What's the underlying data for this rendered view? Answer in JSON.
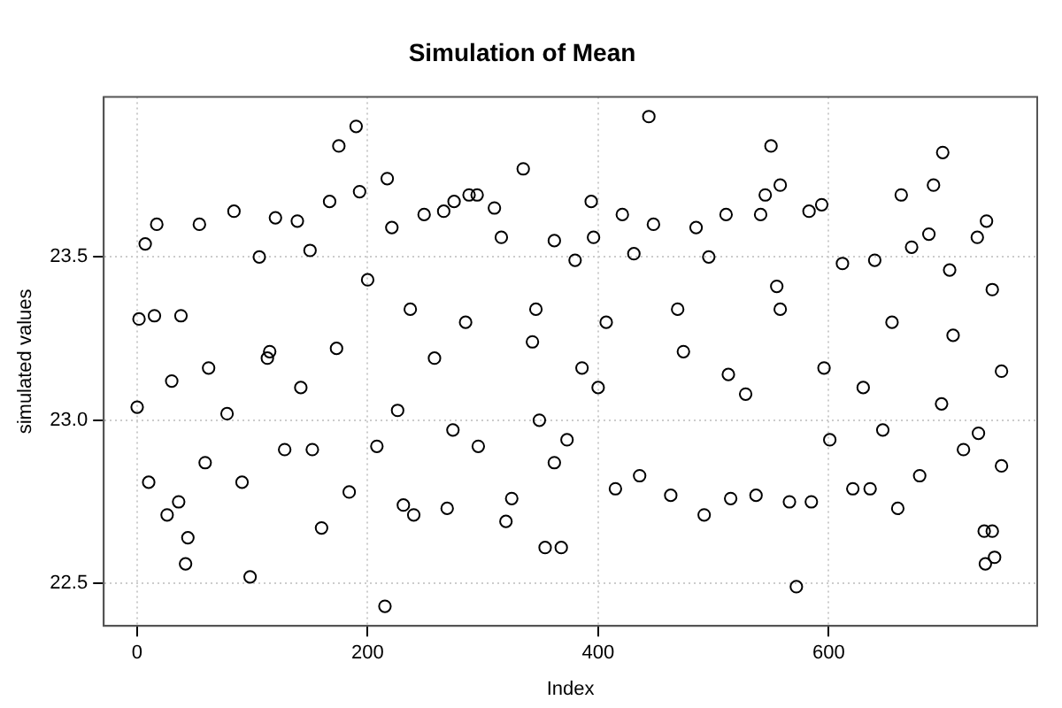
{
  "chart_data": {
    "type": "scatter",
    "title": "Simulation of Mean",
    "xlabel": "Index",
    "ylabel": "simulated values",
    "xlim": [
      -29,
      781
    ],
    "ylim": [
      22.37,
      23.99
    ],
    "xticks": [
      0,
      200,
      400,
      600
    ],
    "yticks": [
      22.5,
      {
        "value": 23,
        "label": "23.0"
      },
      23.5
    ],
    "grid": true,
    "legend": false,
    "marker": "circle",
    "series": [
      {
        "color": "#000000",
        "x": [
          0,
          1.6,
          7,
          17,
          10,
          26,
          42,
          44,
          36,
          38,
          54,
          84,
          98,
          91,
          106,
          120,
          113,
          139,
          128,
          150,
          160,
          167,
          175,
          190,
          193,
          184,
          215,
          217,
          221,
          208,
          231,
          240,
          249,
          266,
          269,
          275,
          288,
          295,
          310,
          320,
          325,
          335,
          316,
          296,
          285,
          258,
          237,
          200,
          173,
          142,
          115,
          78,
          62,
          30,
          15,
          59,
          152,
          226,
          274,
          343,
          354,
          368,
          362,
          349,
          346,
          362,
          380,
          373,
          394,
          396,
          415,
          421,
          431,
          444,
          448,
          436,
          400,
          463,
          474,
          485,
          492,
          496,
          511,
          515,
          528,
          537,
          541,
          545,
          550,
          558,
          555,
          572,
          566,
          583,
          594,
          585,
          596,
          601,
          612,
          621,
          636,
          640,
          647,
          660,
          663,
          672,
          679,
          687,
          691,
          699,
          705,
          717,
          729,
          730,
          735,
          736,
          742,
          744,
          750,
          750,
          737,
          742,
          708,
          655,
          558,
          469,
          386,
          407,
          513,
          630,
          698
        ],
        "values": [
          23.04,
          23.31,
          23.54,
          23.6,
          22.81,
          22.71,
          22.56,
          22.64,
          22.75,
          23.32,
          23.6,
          23.64,
          22.52,
          22.81,
          23.5,
          23.62,
          23.19,
          23.61,
          22.91,
          23.52,
          22.67,
          23.67,
          23.84,
          23.9,
          23.7,
          22.78,
          22.43,
          23.74,
          23.59,
          22.92,
          22.74,
          22.71,
          23.63,
          23.64,
          22.73,
          23.67,
          23.69,
          23.69,
          23.65,
          22.69,
          22.76,
          23.77,
          23.56,
          22.92,
          23.3,
          23.19,
          23.34,
          23.43,
          23.22,
          23.1,
          23.21,
          23.02,
          23.16,
          23.12,
          23.32,
          22.87,
          22.91,
          23.03,
          22.97,
          23.24,
          22.61,
          22.61,
          22.87,
          23.0,
          23.34,
          23.55,
          23.49,
          22.94,
          23.67,
          23.56,
          22.79,
          23.63,
          23.51,
          23.93,
          23.6,
          22.83,
          23.1,
          22.77,
          23.21,
          23.59,
          22.71,
          23.5,
          23.63,
          22.76,
          23.08,
          22.77,
          23.63,
          23.69,
          23.84,
          23.72,
          23.41,
          22.49,
          22.75,
          23.64,
          23.66,
          22.75,
          23.16,
          22.94,
          23.48,
          22.79,
          22.79,
          23.49,
          22.97,
          22.73,
          23.69,
          23.53,
          22.83,
          23.57,
          23.72,
          23.82,
          23.46,
          22.91,
          23.56,
          22.96,
          22.66,
          22.56,
          22.66,
          22.58,
          22.86,
          23.15,
          23.61,
          23.4,
          23.26,
          23.3,
          23.34,
          23.34,
          23.16,
          23.3,
          23.14,
          23.1,
          23.05
        ]
      }
    ]
  }
}
